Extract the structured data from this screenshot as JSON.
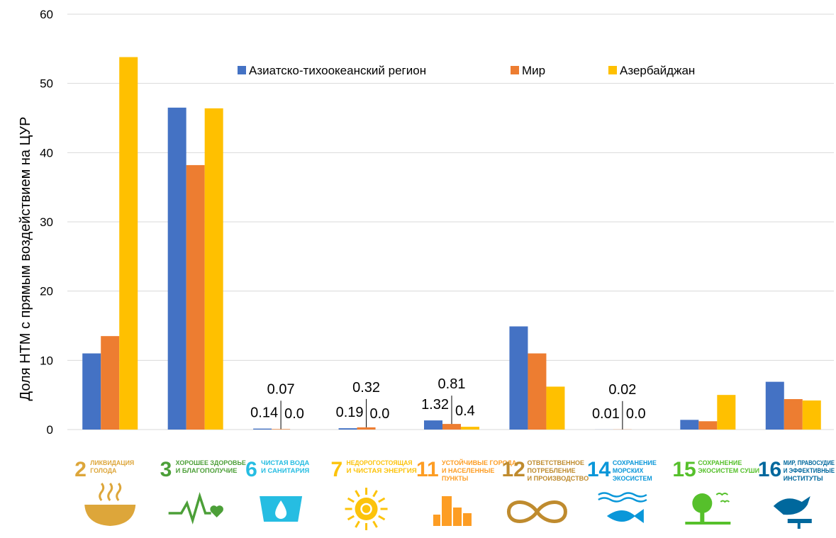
{
  "chart_data": {
    "type": "bar",
    "ylabel": "Доля НТМ с прямым воздействием на ЦУР",
    "xlabel": "",
    "ylim": [
      0,
      60
    ],
    "yticks": [
      0,
      10,
      20,
      30,
      40,
      50,
      60
    ],
    "grid": true,
    "legend_position": "top",
    "categories": [
      {
        "num": "2",
        "label": [
          "ЛИКВИДАЦИЯ",
          "ГОЛОДА"
        ],
        "color": "#dda63a",
        "icon": "bowl-icon"
      },
      {
        "num": "3",
        "label": [
          "ХОРОШЕЕ ЗДОРОВЬЕ",
          "И БЛАГОПОЛУЧИЕ"
        ],
        "color": "#4c9f38",
        "icon": "heartbeat-icon"
      },
      {
        "num": "6",
        "label": [
          "ЧИСТАЯ ВОДА",
          "И САНИТАРИЯ"
        ],
        "color": "#26bde2",
        "icon": "water-drop-icon"
      },
      {
        "num": "7",
        "label": [
          "НЕДОРОГОСТОЯЩАЯ",
          "И ЧИСТАЯ ЭНЕРГИЯ"
        ],
        "color": "#fcc30b",
        "icon": "sun-power-icon"
      },
      {
        "num": "11",
        "label": [
          "УСТОЙЧИВЫЕ ГОРОДА",
          "И НАСЕЛЕННЫЕ",
          "ПУНКТЫ"
        ],
        "color": "#fd9d24",
        "icon": "buildings-icon"
      },
      {
        "num": "12",
        "label": [
          "ОТВЕТСТВЕННОЕ",
          "ПОТРЕБЛЕНИЕ",
          "И ПРОИЗВОДСТВО"
        ],
        "color": "#bf8b2e",
        "icon": "infinity-icon"
      },
      {
        "num": "14",
        "label": [
          "СОХРАНЕНИЕ",
          "МОРСКИХ",
          "ЭКОСИСТЕМ"
        ],
        "color": "#0a97d9",
        "icon": "fish-icon"
      },
      {
        "num": "15",
        "label": [
          "СОХРАНЕНИЕ",
          "ЭКОСИСТЕМ СУШИ"
        ],
        "color": "#56c02b",
        "icon": "tree-icon"
      },
      {
        "num": "16",
        "label": [
          "МИР, ПРАВОСУДИЕ",
          "И ЭФФЕКТИВНЫЕ",
          "ИНСТИТУТЫ"
        ],
        "color": "#00689d",
        "icon": "dove-icon"
      }
    ],
    "series": [
      {
        "name": "Азиатско-тихоокеанский регион",
        "color": "#4472c4",
        "values": [
          11.0,
          46.5,
          0.14,
          0.19,
          1.32,
          14.9,
          0.01,
          1.4,
          6.9
        ]
      },
      {
        "name": "Мир",
        "color": "#ed7d31",
        "values": [
          13.5,
          38.2,
          0.07,
          0.32,
          0.81,
          11.0,
          0.02,
          1.2,
          4.4
        ]
      },
      {
        "name": "Азербайджан",
        "color": "#ffc000",
        "values": [
          53.8,
          46.4,
          0.0,
          0.0,
          0.4,
          6.2,
          0.0,
          5.0,
          4.2
        ]
      }
    ],
    "data_labels": [
      {
        "category": 2,
        "series": 0,
        "text": "0.14"
      },
      {
        "category": 2,
        "series": 1,
        "text": "0.07"
      },
      {
        "category": 2,
        "series": 2,
        "text": "0.0"
      },
      {
        "category": 3,
        "series": 0,
        "text": "0.19"
      },
      {
        "category": 3,
        "series": 1,
        "text": "0.32"
      },
      {
        "category": 3,
        "series": 2,
        "text": "0.0"
      },
      {
        "category": 4,
        "series": 0,
        "text": "1.32"
      },
      {
        "category": 4,
        "series": 1,
        "text": "0.81"
      },
      {
        "category": 4,
        "series": 2,
        "text": "0.4"
      },
      {
        "category": 6,
        "series": 0,
        "text": "0.01"
      },
      {
        "category": 6,
        "series": 1,
        "text": "0.02"
      },
      {
        "category": 6,
        "series": 2,
        "text": "0.0"
      }
    ]
  }
}
